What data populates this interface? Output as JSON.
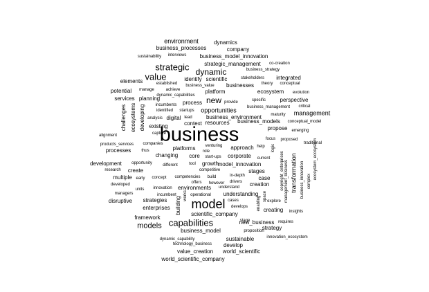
{
  "words": [
    "business",
    "model",
    "capabilities",
    "strategic",
    "value",
    "dynamic",
    "new",
    "models",
    "environment",
    "dynamics",
    "business_processes",
    "company",
    "business_model_innovation",
    "sustainability",
    "interviews",
    "strategic_management",
    "co-creation",
    "business_strategy",
    "elements",
    "established",
    "stakeholders",
    "integrated",
    "theory",
    "conceptual",
    "potential",
    "manage",
    "achieve",
    "identify",
    "scientific",
    "business_value",
    "businesses",
    "ecosystem",
    "evolution",
    "platform",
    "services",
    "planning",
    "dynamic_capabilities",
    "perspective",
    "incumbents",
    "process",
    "provide",
    "specific",
    "business_management",
    "critical",
    "identified",
    "startups",
    "opportunities",
    "management",
    "analysis",
    "digital",
    "lead",
    "business_environment",
    "maturity",
    "conceptual_model",
    "existing",
    "context",
    "resources",
    "business_models",
    "propose",
    "emerging",
    "challenges",
    "ecosystems",
    "developing",
    "alignment",
    "capture",
    "focus",
    "proposed",
    "traditional",
    "products_services",
    "companies",
    "venturing",
    "approach",
    "help",
    "logic",
    "processes",
    "thus",
    "platforms",
    "role",
    "changing",
    "core",
    "start-ups",
    "corporate",
    "current",
    "development",
    "opportunity",
    "tool",
    "growth",
    "model_innovation",
    "research",
    "create",
    "different",
    "competitive",
    "stages",
    "multiple",
    "early",
    "concept",
    "competencies",
    "build",
    "in-depth",
    "case",
    "developed",
    "offers",
    "however",
    "drivers",
    "creation",
    "units",
    "innovation",
    "environments",
    "understand",
    "managers",
    "incumbent",
    "operational",
    "understanding",
    "disruptive",
    "strategies",
    "cases",
    "explore",
    "enterprises",
    "building",
    "works",
    "develops",
    "creating",
    "insights",
    "framework",
    "scientific_company",
    "stage",
    "requires",
    "new_business",
    "strategy",
    "business_model",
    "proposition",
    "dynamic_capability",
    "sustainable",
    "innovation_ecosystem",
    "technology_business",
    "develop",
    "value_creation",
    "world_scientific",
    "world_scientific_company",
    "transformation",
    "copyright_enterprises",
    "management_business",
    "business_innovation",
    "complex",
    "ecosystem_ecosystem",
    "enabling",
    "space"
  ]
}
